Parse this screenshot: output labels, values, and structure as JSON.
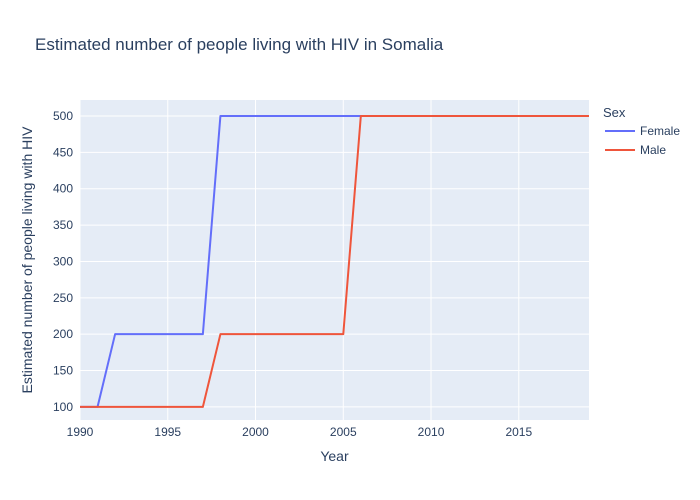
{
  "chart_data": {
    "type": "line",
    "title": "Estimated number of people living with HIV in Somalia",
    "xlabel": "Year",
    "ylabel": "Estimated number of people living with HIV",
    "xlim": [
      1990,
      2019
    ],
    "ylim": [
      82,
      522
    ],
    "xticks": [
      1990,
      1995,
      2000,
      2005,
      2010,
      2015
    ],
    "yticks": [
      100,
      150,
      200,
      250,
      300,
      350,
      400,
      450,
      500
    ],
    "grid": true,
    "legend": {
      "title": "Sex",
      "position": "right"
    },
    "x": [
      1990,
      1991,
      1992,
      1993,
      1994,
      1995,
      1996,
      1997,
      1998,
      1999,
      2000,
      2001,
      2002,
      2003,
      2004,
      2005,
      2006,
      2007,
      2008,
      2009,
      2010,
      2011,
      2012,
      2013,
      2014,
      2015,
      2016,
      2017,
      2018,
      2019
    ],
    "series": [
      {
        "name": "Female",
        "color": "#636efa",
        "values": [
          100,
          100,
          200,
          200,
          200,
          200,
          200,
          200,
          500,
          500,
          500,
          500,
          500,
          500,
          500,
          500,
          500,
          500,
          500,
          500,
          500,
          500,
          500,
          500,
          500,
          500,
          500,
          500,
          500,
          500
        ]
      },
      {
        "name": "Male",
        "color": "#ef553b",
        "values": [
          100,
          100,
          100,
          100,
          100,
          100,
          100,
          100,
          200,
          200,
          200,
          200,
          200,
          200,
          200,
          200,
          500,
          500,
          500,
          500,
          500,
          500,
          500,
          500,
          500,
          500,
          500,
          500,
          500,
          500
        ]
      }
    ]
  },
  "colors": {
    "plot_background": "#e5ecf6",
    "grid": "#ffffff",
    "text": "#2a3f5f"
  }
}
